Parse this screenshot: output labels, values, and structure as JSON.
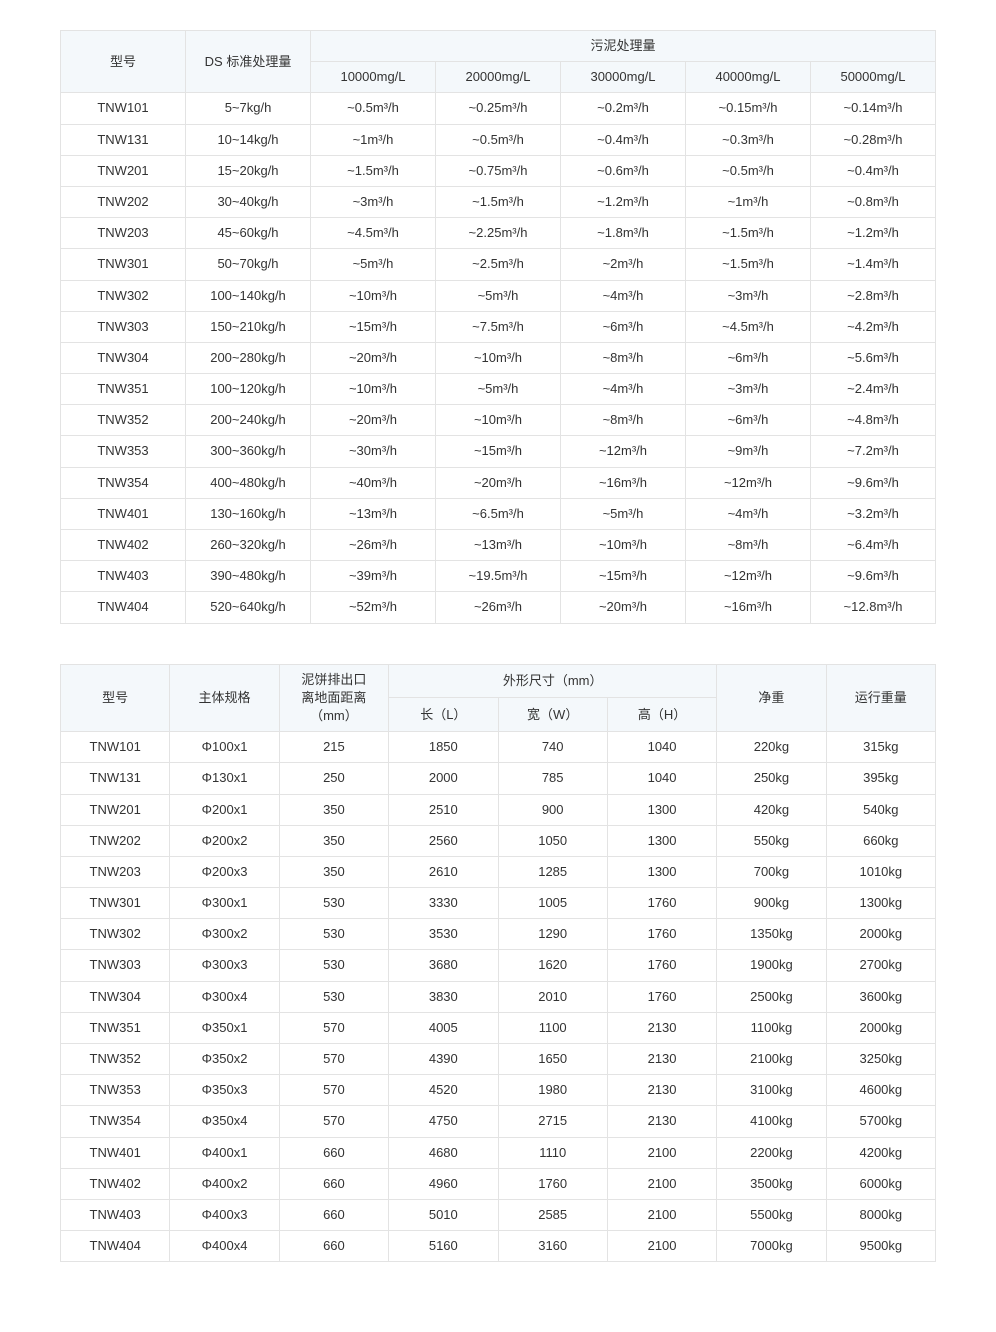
{
  "table1": {
    "headers": {
      "model": "型号",
      "ds": "DS 标准处理量",
      "sludge": "污泥处理量",
      "cols": [
        "10000mg/L",
        "20000mg/L",
        "30000mg/L",
        "40000mg/L",
        "50000mg/L"
      ]
    },
    "rows": [
      {
        "model": "TNW101",
        "ds": "5~7kg/h",
        "v": [
          "~0.5m³/h",
          "~0.25m³/h",
          "~0.2m³/h",
          "~0.15m³/h",
          "~0.14m³/h"
        ]
      },
      {
        "model": "TNW131",
        "ds": "10~14kg/h",
        "v": [
          "~1m³/h",
          "~0.5m³/h",
          "~0.4m³/h",
          "~0.3m³/h",
          "~0.28m³/h"
        ]
      },
      {
        "model": "TNW201",
        "ds": "15~20kg/h",
        "v": [
          "~1.5m³/h",
          "~0.75m³/h",
          "~0.6m³/h",
          "~0.5m³/h",
          "~0.4m³/h"
        ]
      },
      {
        "model": "TNW202",
        "ds": "30~40kg/h",
        "v": [
          "~3m³/h",
          "~1.5m³/h",
          "~1.2m³/h",
          "~1m³/h",
          "~0.8m³/h"
        ]
      },
      {
        "model": "TNW203",
        "ds": "45~60kg/h",
        "v": [
          "~4.5m³/h",
          "~2.25m³/h",
          "~1.8m³/h",
          "~1.5m³/h",
          "~1.2m³/h"
        ]
      },
      {
        "model": "TNW301",
        "ds": "50~70kg/h",
        "v": [
          "~5m³/h",
          "~2.5m³/h",
          "~2m³/h",
          "~1.5m³/h",
          "~1.4m³/h"
        ]
      },
      {
        "model": "TNW302",
        "ds": "100~140kg/h",
        "v": [
          "~10m³/h",
          "~5m³/h",
          "~4m³/h",
          "~3m³/h",
          "~2.8m³/h"
        ]
      },
      {
        "model": "TNW303",
        "ds": "150~210kg/h",
        "v": [
          "~15m³/h",
          "~7.5m³/h",
          "~6m³/h",
          "~4.5m³/h",
          "~4.2m³/h"
        ]
      },
      {
        "model": "TNW304",
        "ds": "200~280kg/h",
        "v": [
          "~20m³/h",
          "~10m³/h",
          "~8m³/h",
          "~6m³/h",
          "~5.6m³/h"
        ]
      },
      {
        "model": "TNW351",
        "ds": "100~120kg/h",
        "v": [
          "~10m³/h",
          "~5m³/h",
          "~4m³/h",
          "~3m³/h",
          "~2.4m³/h"
        ]
      },
      {
        "model": "TNW352",
        "ds": "200~240kg/h",
        "v": [
          "~20m³/h",
          "~10m³/h",
          "~8m³/h",
          "~6m³/h",
          "~4.8m³/h"
        ]
      },
      {
        "model": "TNW353",
        "ds": "300~360kg/h",
        "v": [
          "~30m³/h",
          "~15m³/h",
          "~12m³/h",
          "~9m³/h",
          "~7.2m³/h"
        ]
      },
      {
        "model": "TNW354",
        "ds": "400~480kg/h",
        "v": [
          "~40m³/h",
          "~20m³/h",
          "~16m³/h",
          "~12m³/h",
          "~9.6m³/h"
        ]
      },
      {
        "model": "TNW401",
        "ds": "130~160kg/h",
        "v": [
          "~13m³/h",
          "~6.5m³/h",
          "~5m³/h",
          "~4m³/h",
          "~3.2m³/h"
        ]
      },
      {
        "model": "TNW402",
        "ds": "260~320kg/h",
        "v": [
          "~26m³/h",
          "~13m³/h",
          "~10m³/h",
          "~8m³/h",
          "~6.4m³/h"
        ]
      },
      {
        "model": "TNW403",
        "ds": "390~480kg/h",
        "v": [
          "~39m³/h",
          "~19.5m³/h",
          "~15m³/h",
          "~12m³/h",
          "~9.6m³/h"
        ]
      },
      {
        "model": "TNW404",
        "ds": "520~640kg/h",
        "v": [
          "~52m³/h",
          "~26m³/h",
          "~20m³/h",
          "~16m³/h",
          "~12.8m³/h"
        ]
      }
    ]
  },
  "table2": {
    "headers": {
      "model": "型号",
      "body": "主体规格",
      "outlet": "泥饼排出口\n离地面距离\n（mm）",
      "dim": "外形尺寸（mm）",
      "dimcols": [
        "长（L）",
        "宽（W）",
        "高（H）"
      ],
      "net": "净重",
      "run": "运行重量"
    },
    "rows": [
      {
        "model": "TNW101",
        "body": "Φ100x1",
        "outlet": "215",
        "d": [
          "1850",
          "740",
          "1040"
        ],
        "net": "220kg",
        "run": "315kg"
      },
      {
        "model": "TNW131",
        "body": "Φ130x1",
        "outlet": "250",
        "d": [
          "2000",
          "785",
          "1040"
        ],
        "net": "250kg",
        "run": "395kg"
      },
      {
        "model": "TNW201",
        "body": "Φ200x1",
        "outlet": "350",
        "d": [
          "2510",
          "900",
          "1300"
        ],
        "net": "420kg",
        "run": "540kg"
      },
      {
        "model": "TNW202",
        "body": "Φ200x2",
        "outlet": "350",
        "d": [
          "2560",
          "1050",
          "1300"
        ],
        "net": "550kg",
        "run": "660kg"
      },
      {
        "model": "TNW203",
        "body": "Φ200x3",
        "outlet": "350",
        "d": [
          "2610",
          "1285",
          "1300"
        ],
        "net": "700kg",
        "run": "1010kg"
      },
      {
        "model": "TNW301",
        "body": "Φ300x1",
        "outlet": "530",
        "d": [
          "3330",
          "1005",
          "1760"
        ],
        "net": "900kg",
        "run": "1300kg"
      },
      {
        "model": "TNW302",
        "body": "Φ300x2",
        "outlet": "530",
        "d": [
          "3530",
          "1290",
          "1760"
        ],
        "net": "1350kg",
        "run": "2000kg"
      },
      {
        "model": "TNW303",
        "body": "Φ300x3",
        "outlet": "530",
        "d": [
          "3680",
          "1620",
          "1760"
        ],
        "net": "1900kg",
        "run": "2700kg"
      },
      {
        "model": "TNW304",
        "body": "Φ300x4",
        "outlet": "530",
        "d": [
          "3830",
          "2010",
          "1760"
        ],
        "net": "2500kg",
        "run": "3600kg"
      },
      {
        "model": "TNW351",
        "body": "Φ350x1",
        "outlet": "570",
        "d": [
          "4005",
          "1100",
          "2130"
        ],
        "net": "1100kg",
        "run": "2000kg"
      },
      {
        "model": "TNW352",
        "body": "Φ350x2",
        "outlet": "570",
        "d": [
          "4390",
          "1650",
          "2130"
        ],
        "net": "2100kg",
        "run": "3250kg"
      },
      {
        "model": "TNW353",
        "body": "Φ350x3",
        "outlet": "570",
        "d": [
          "4520",
          "1980",
          "2130"
        ],
        "net": "3100kg",
        "run": "4600kg"
      },
      {
        "model": "TNW354",
        "body": "Φ350x4",
        "outlet": "570",
        "d": [
          "4750",
          "2715",
          "2130"
        ],
        "net": "4100kg",
        "run": "5700kg"
      },
      {
        "model": "TNW401",
        "body": "Φ400x1",
        "outlet": "660",
        "d": [
          "4680",
          "1110",
          "2100"
        ],
        "net": "2200kg",
        "run": "4200kg"
      },
      {
        "model": "TNW402",
        "body": "Φ400x2",
        "outlet": "660",
        "d": [
          "4960",
          "1760",
          "2100"
        ],
        "net": "3500kg",
        "run": "6000kg"
      },
      {
        "model": "TNW403",
        "body": "Φ400x3",
        "outlet": "660",
        "d": [
          "5010",
          "2585",
          "2100"
        ],
        "net": "5500kg",
        "run": "8000kg"
      },
      {
        "model": "TNW404",
        "body": "Φ400x4",
        "outlet": "660",
        "d": [
          "5160",
          "3160",
          "2100"
        ],
        "net": "7000kg",
        "run": "9500kg"
      }
    ]
  },
  "style": {
    "header_bg": "#f4f8fb",
    "border_color": "#e3e3e3",
    "text_color": "#333333",
    "background_color": "#ffffff",
    "font_size": 13
  }
}
